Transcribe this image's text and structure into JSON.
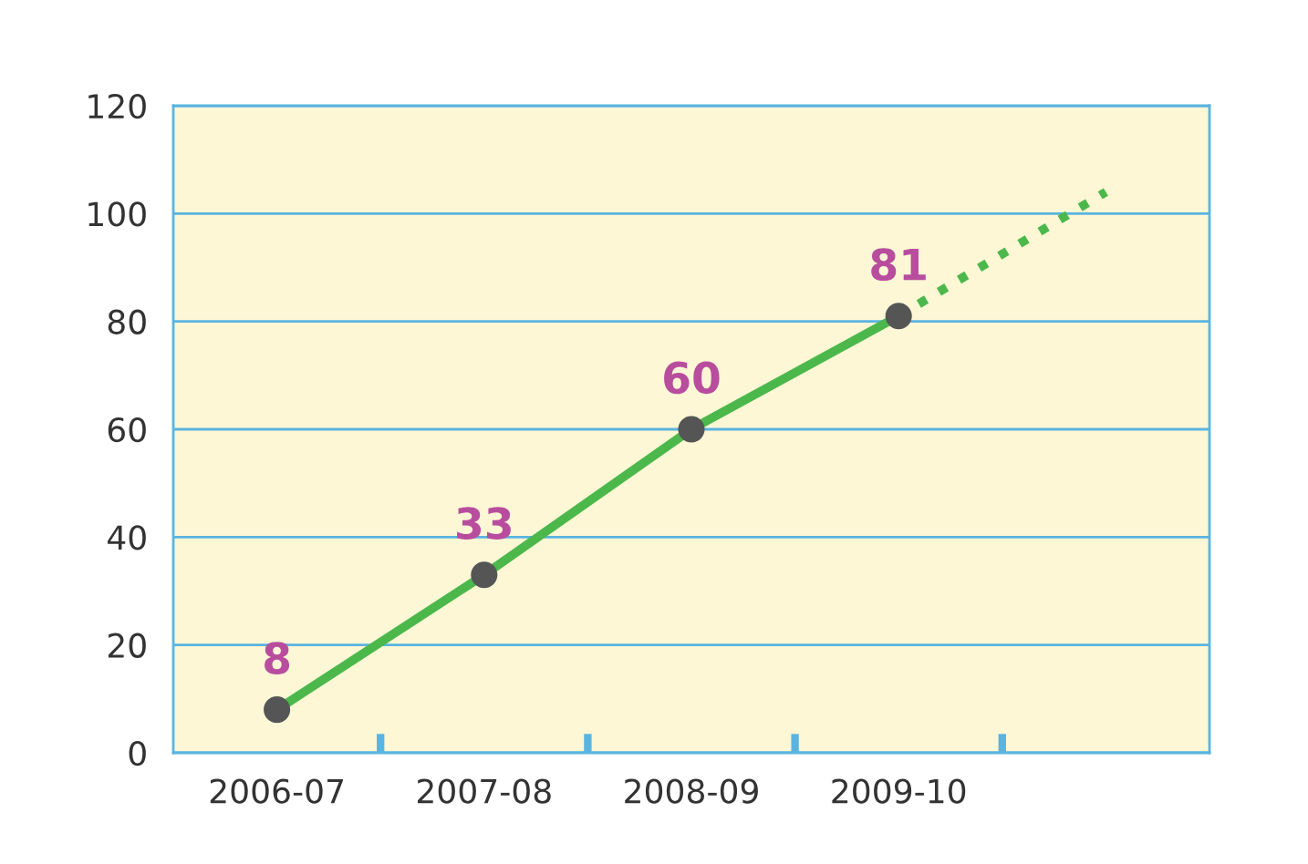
{
  "chart_data": {
    "type": "line",
    "categories": [
      "2006-07",
      "2007-08",
      "2008-09",
      "2009-10",
      null
    ],
    "series": [
      {
        "color": "#4cb84c",
        "values": [
          8,
          33,
          60,
          81,
          null
        ],
        "value_labels": [
          "8",
          "33",
          "60",
          "81",
          null
        ],
        "marker": "circle",
        "line_style": "solid"
      },
      {
        "color": "#4cb84c",
        "values": [
          null,
          null,
          null,
          81,
          104
        ],
        "line_style": "dotted"
      }
    ],
    "ylim": [
      0,
      120
    ],
    "yticks": [
      0,
      20,
      40,
      60,
      80,
      100,
      120
    ],
    "grid": "y",
    "legend": false
  }
}
